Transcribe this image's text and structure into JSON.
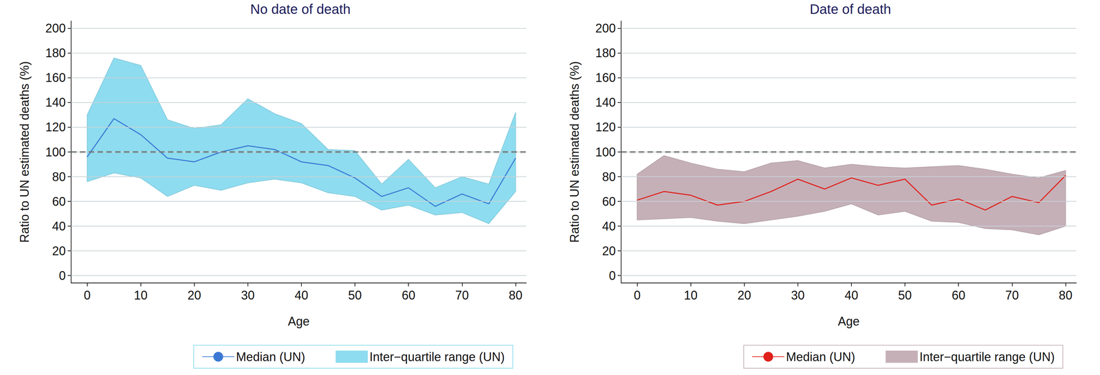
{
  "chart_data": [
    {
      "type": "line",
      "title": "No date of death",
      "xlabel": "Age",
      "ylabel": "Ratio to UN estimated deaths (%)",
      "x": [
        0,
        5,
        10,
        15,
        20,
        25,
        30,
        35,
        40,
        45,
        50,
        55,
        60,
        65,
        70,
        75,
        80
      ],
      "xlim": [
        -3,
        82
      ],
      "xticks": [
        0,
        10,
        20,
        30,
        40,
        50,
        60,
        70,
        80
      ],
      "ylim": [
        -6,
        206
      ],
      "yticks": [
        0,
        20,
        40,
        60,
        80,
        100,
        120,
        140,
        160,
        180,
        200
      ],
      "grid": true,
      "legend": "bottom",
      "reference_value": 100,
      "series": [
        {
          "name": "Median (UN)",
          "type": "line",
          "color": "#3a78d4",
          "values": [
            96,
            127,
            114,
            95,
            92,
            100,
            105,
            102,
            92,
            89,
            79,
            64,
            71,
            56,
            66,
            58,
            95
          ]
        },
        {
          "name": "Inter−quartile range (UN)",
          "type": "area",
          "color": "#8edcef",
          "lower": [
            76,
            83,
            79,
            64,
            73,
            69,
            75,
            78,
            75,
            67,
            64,
            53,
            57,
            49,
            51,
            42,
            68
          ],
          "upper": [
            130,
            176,
            170,
            126,
            119,
            122,
            143,
            131,
            123,
            102,
            101,
            74,
            94,
            71,
            80,
            74,
            132
          ]
        }
      ]
    },
    {
      "type": "line",
      "title": "Date of death",
      "xlabel": "Age",
      "ylabel": "Ratio to UN estimated deaths (%)",
      "x": [
        0,
        5,
        10,
        15,
        20,
        25,
        30,
        35,
        40,
        45,
        50,
        55,
        60,
        65,
        70,
        75,
        80
      ],
      "xlim": [
        -3,
        82
      ],
      "xticks": [
        0,
        10,
        20,
        30,
        40,
        50,
        60,
        70,
        80
      ],
      "ylim": [
        -6,
        206
      ],
      "yticks": [
        0,
        20,
        40,
        60,
        80,
        100,
        120,
        140,
        160,
        180,
        200
      ],
      "grid": true,
      "legend": "bottom",
      "reference_value": 100,
      "series": [
        {
          "name": "Median (UN)",
          "type": "line",
          "color": "#e0201b",
          "values": [
            61,
            68,
            65,
            57,
            60,
            68,
            78,
            70,
            79,
            73,
            78,
            57,
            62,
            53,
            64,
            59,
            81
          ]
        },
        {
          "name": "Inter−quartile range (UN)",
          "type": "area",
          "color": "#c5b0b8",
          "lower": [
            45,
            46,
            47,
            44,
            42,
            45,
            48,
            52,
            58,
            49,
            52,
            44,
            43,
            38,
            37,
            33,
            40
          ],
          "upper": [
            82,
            97,
            91,
            86,
            84,
            91,
            93,
            87,
            90,
            88,
            87,
            88,
            89,
            86,
            82,
            79,
            85
          ]
        }
      ]
    }
  ]
}
